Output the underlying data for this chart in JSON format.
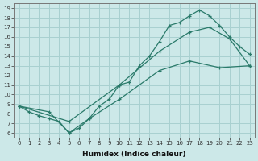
{
  "xlabel": "Humidex (Indice chaleur)",
  "bg_color": "#cce8e8",
  "grid_color": "#a8d0d0",
  "line_color": "#2a7a6a",
  "xlim": [
    -0.5,
    23.5
  ],
  "ylim": [
    5.5,
    19.5
  ],
  "xticks": [
    0,
    1,
    2,
    3,
    4,
    5,
    6,
    7,
    8,
    9,
    10,
    11,
    12,
    13,
    14,
    15,
    16,
    17,
    18,
    19,
    20,
    21,
    22,
    23
  ],
  "yticks": [
    6,
    7,
    8,
    9,
    10,
    11,
    12,
    13,
    14,
    15,
    16,
    17,
    18,
    19
  ],
  "line1_x": [
    0,
    1,
    2,
    3,
    4,
    5,
    6,
    7,
    8,
    9,
    10,
    11,
    12,
    13,
    14,
    15,
    16,
    17,
    18,
    19,
    20,
    21,
    22,
    23
  ],
  "line1_y": [
    8.8,
    8.2,
    7.8,
    7.5,
    7.2,
    6.0,
    6.5,
    7.5,
    8.8,
    9.5,
    11.0,
    11.3,
    13.0,
    14.0,
    15.5,
    17.2,
    17.5,
    18.2,
    18.8,
    18.2,
    17.2,
    16.0,
    15.0,
    14.2
  ],
  "line2_x": [
    0,
    5,
    10,
    14,
    17,
    19,
    21,
    23
  ],
  "line2_y": [
    8.8,
    7.2,
    11.0,
    14.5,
    16.5,
    17.0,
    15.8,
    13.0
  ],
  "line3_x": [
    0,
    3,
    5,
    7,
    10,
    14,
    17,
    20,
    23
  ],
  "line3_y": [
    8.8,
    8.2,
    6.0,
    7.5,
    9.5,
    12.5,
    13.5,
    12.8,
    13.0
  ]
}
